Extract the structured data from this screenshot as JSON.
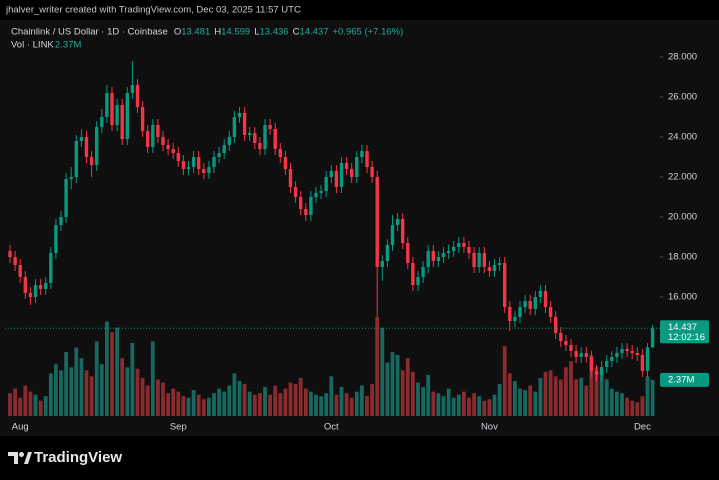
{
  "header": {
    "watermark": "jhalver_writer created with TradingView.com, Dec 03, 2025 11:57 UTC",
    "symbol": "Chainlink / US Dollar · 1D · Coinbase",
    "ohlc": [
      {
        "key": "O",
        "value": "13.481"
      },
      {
        "key": "H",
        "value": "14.599"
      },
      {
        "key": "L",
        "value": "13.436"
      },
      {
        "key": "C",
        "value": "14.437"
      }
    ],
    "change": "+0.965 (+7.16%)",
    "volume_title": "Vol · LINK",
    "volume_value": "2.37M",
    "logo": "TradingView"
  },
  "chart_data": {
    "type": "candlestick",
    "categories": [
      null,
      null,
      "Aug",
      null,
      null,
      null,
      null,
      null,
      null,
      null,
      null,
      null,
      null,
      null,
      null,
      null,
      null,
      null,
      null,
      null,
      null,
      null,
      null,
      null,
      null,
      null,
      null,
      null,
      null,
      null,
      null,
      null,
      null,
      "Sep",
      null,
      null,
      null,
      null,
      null,
      null,
      null,
      null,
      null,
      null,
      null,
      null,
      null,
      null,
      null,
      null,
      null,
      null,
      null,
      null,
      null,
      null,
      null,
      null,
      null,
      null,
      null,
      null,
      null,
      "Oct",
      null,
      null,
      null,
      null,
      null,
      null,
      null,
      null,
      null,
      null,
      null,
      null,
      null,
      null,
      null,
      null,
      null,
      null,
      null,
      null,
      null,
      null,
      null,
      null,
      null,
      null,
      null,
      null,
      null,
      null,
      "Nov",
      null,
      null,
      null,
      null,
      null,
      null,
      null,
      null,
      null,
      null,
      null,
      null,
      null,
      null,
      null,
      null,
      null,
      null,
      null,
      null,
      null,
      null,
      null,
      null,
      null,
      null,
      null,
      null,
      null,
      "Dec",
      null,
      null
    ],
    "open": [
      18.3,
      18.0,
      17.6,
      17.0,
      16.2,
      16.0,
      16.6,
      16.4,
      16.7,
      18.2,
      19.6,
      20.0,
      21.9,
      22.0,
      23.8,
      24.0,
      23.0,
      22.6,
      24.5,
      25.0,
      26.2,
      24.6,
      25.6,
      23.9,
      26.2,
      26.6,
      25.5,
      24.3,
      23.5,
      24.6,
      24.0,
      23.6,
      23.4,
      23.2,
      22.8,
      22.4,
      22.5,
      23.0,
      22.4,
      22.2,
      22.5,
      23.0,
      23.2,
      23.6,
      24.0,
      25.0,
      25.2,
      24.1,
      24.2,
      23.7,
      23.4,
      24.6,
      24.4,
      23.4,
      23.0,
      22.4,
      21.5,
      21.0,
      20.4,
      20.1,
      21.0,
      21.2,
      21.3,
      22.0,
      22.3,
      21.5,
      22.7,
      22.4,
      22.0,
      23.0,
      23.3,
      22.5,
      22.0,
      17.5,
      17.8,
      18.6,
      19.6,
      19.9,
      18.7,
      17.7,
      16.6,
      17.0,
      17.5,
      18.3,
      17.8,
      18.0,
      18.2,
      18.3,
      18.5,
      18.7,
      18.5,
      18.2,
      17.5,
      18.2,
      17.5,
      17.3,
      17.6,
      17.7,
      15.5,
      14.8,
      15.0,
      15.5,
      15.8,
      15.4,
      16.0,
      16.3,
      15.5,
      15.0,
      14.2,
      13.8,
      13.6,
      13.3,
      13.0,
      13.2,
      13.0,
      12.3,
      12.1,
      12.5,
      12.8,
      13.0,
      13.2,
      13.4,
      13.3,
      13.2,
      13.1,
      12.3,
      13.481
    ],
    "high": [
      18.6,
      18.3,
      17.9,
      17.3,
      16.5,
      16.9,
      16.9,
      17.0,
      18.5,
      19.9,
      20.3,
      22.2,
      22.5,
      24.1,
      24.4,
      24.3,
      23.3,
      24.8,
      25.4,
      26.6,
      26.5,
      25.9,
      25.9,
      26.5,
      27.8,
      26.9,
      25.8,
      24.6,
      24.9,
      24.9,
      24.3,
      23.9,
      23.7,
      23.5,
      23.1,
      22.8,
      23.3,
      23.3,
      22.7,
      22.8,
      23.3,
      23.5,
      23.9,
      24.3,
      25.3,
      25.5,
      25.5,
      24.5,
      24.5,
      24.0,
      24.9,
      24.9,
      24.7,
      23.7,
      23.3,
      22.7,
      21.8,
      21.3,
      20.7,
      21.3,
      21.5,
      21.6,
      22.3,
      22.6,
      22.6,
      23.0,
      23.0,
      22.7,
      23.3,
      23.6,
      23.6,
      22.8,
      22.3,
      18.1,
      18.9,
      20.1,
      20.2,
      20.2,
      19.0,
      18.0,
      17.3,
      17.8,
      18.6,
      18.6,
      18.3,
      18.5,
      18.6,
      18.8,
      19.0,
      19.0,
      18.8,
      18.5,
      18.5,
      18.5,
      17.8,
      17.9,
      18.0,
      18.0,
      15.8,
      15.3,
      15.8,
      16.1,
      16.1,
      16.3,
      16.6,
      16.6,
      15.8,
      15.3,
      14.5,
      14.1,
      13.9,
      13.6,
      13.5,
      13.5,
      13.3,
      12.6,
      12.8,
      13.1,
      13.3,
      13.5,
      13.7,
      13.7,
      13.6,
      13.5,
      13.4,
      13.7,
      14.599
    ],
    "low": [
      17.7,
      17.3,
      16.7,
      15.9,
      15.6,
      15.7,
      16.1,
      16.1,
      16.4,
      17.9,
      19.3,
      19.7,
      21.4,
      21.7,
      23.5,
      22.7,
      22.0,
      22.3,
      24.2,
      24.7,
      24.3,
      24.3,
      23.6,
      23.6,
      25.9,
      25.2,
      24.0,
      23.2,
      23.2,
      23.7,
      23.3,
      23.1,
      22.9,
      22.5,
      22.1,
      22.1,
      22.2,
      22.1,
      21.9,
      21.9,
      22.2,
      22.7,
      22.9,
      23.3,
      23.7,
      24.7,
      23.8,
      23.8,
      23.4,
      23.1,
      23.1,
      24.1,
      23.1,
      22.7,
      22.1,
      21.2,
      20.7,
      20.1,
      19.8,
      19.8,
      20.7,
      20.9,
      21.0,
      21.7,
      21.2,
      21.2,
      22.1,
      21.7,
      21.7,
      22.7,
      22.2,
      21.7,
      15.0,
      16.8,
      17.5,
      18.3,
      19.3,
      18.4,
      17.4,
      16.3,
      16.3,
      16.7,
      17.2,
      17.5,
      17.5,
      17.7,
      17.9,
      18.0,
      18.2,
      18.2,
      17.9,
      17.2,
      17.2,
      17.2,
      17.0,
      17.0,
      17.3,
      15.2,
      14.3,
      14.5,
      14.7,
      15.2,
      15.1,
      15.1,
      15.7,
      15.2,
      14.7,
      13.9,
      13.5,
      13.3,
      13.0,
      12.7,
      12.7,
      12.7,
      12.0,
      11.8,
      11.8,
      12.2,
      12.5,
      12.7,
      12.9,
      13.0,
      12.9,
      12.8,
      12.0,
      12.0,
      13.436
    ],
    "close": [
      18.0,
      17.6,
      17.0,
      16.2,
      16.0,
      16.6,
      16.4,
      16.7,
      18.2,
      19.6,
      20.0,
      21.9,
      22.0,
      23.8,
      24.0,
      23.0,
      22.6,
      24.5,
      25.0,
      26.2,
      24.6,
      25.6,
      23.9,
      26.2,
      26.6,
      25.5,
      24.3,
      23.5,
      24.6,
      24.0,
      23.6,
      23.4,
      23.2,
      22.8,
      22.4,
      22.5,
      23.0,
      22.4,
      22.2,
      22.5,
      23.0,
      23.2,
      23.6,
      24.0,
      25.0,
      25.2,
      24.1,
      24.2,
      23.7,
      23.4,
      24.6,
      24.4,
      23.4,
      23.0,
      22.4,
      21.5,
      21.0,
      20.4,
      20.1,
      21.0,
      21.2,
      21.3,
      22.0,
      22.3,
      21.5,
      22.7,
      22.4,
      22.0,
      23.0,
      23.3,
      22.5,
      22.0,
      17.5,
      17.8,
      18.6,
      19.6,
      19.9,
      18.7,
      17.7,
      16.6,
      17.0,
      17.5,
      18.3,
      17.8,
      18.0,
      18.2,
      18.3,
      18.5,
      18.7,
      18.5,
      18.2,
      17.5,
      18.2,
      17.5,
      17.3,
      17.6,
      17.7,
      15.5,
      14.8,
      15.0,
      15.5,
      15.8,
      15.4,
      16.0,
      16.3,
      15.5,
      15.0,
      14.2,
      13.8,
      13.6,
      13.3,
      13.0,
      13.2,
      13.0,
      12.3,
      12.1,
      12.5,
      12.8,
      13.0,
      13.2,
      13.4,
      13.3,
      13.2,
      13.1,
      12.3,
      13.481,
      14.437
    ],
    "volume": [
      1.5,
      1.8,
      1.2,
      2.0,
      1.6,
      1.4,
      1.0,
      1.3,
      2.8,
      3.4,
      3.0,
      4.2,
      3.2,
      4.5,
      3.8,
      3.0,
      2.6,
      4.9,
      3.4,
      6.2,
      5.5,
      5.8,
      3.8,
      3.2,
      4.8,
      3.1,
      2.5,
      2.0,
      4.9,
      2.4,
      2.2,
      1.5,
      1.8,
      1.6,
      1.3,
      1.2,
      1.7,
      1.4,
      1.1,
      1.2,
      1.5,
      1.8,
      1.6,
      2.0,
      2.8,
      2.3,
      2.1,
      1.6,
      1.4,
      1.5,
      1.9,
      1.4,
      2.0,
      1.5,
      1.8,
      2.2,
      2.1,
      2.5,
      1.8,
      1.6,
      1.4,
      1.3,
      1.5,
      2.6,
      1.4,
      1.9,
      1.5,
      1.2,
      1.6,
      2.0,
      1.3,
      2.1,
      6.5,
      5.8,
      3.5,
      4.2,
      4.0,
      3.0,
      3.8,
      2.9,
      2.2,
      1.9,
      2.7,
      1.6,
      1.5,
      1.3,
      1.8,
      1.2,
      1.4,
      1.6,
      1.2,
      1.5,
      1.3,
      1.0,
      1.1,
      1.4,
      2.1,
      4.6,
      2.8,
      2.3,
      1.8,
      1.7,
      2.0,
      1.6,
      2.5,
      2.9,
      3.0,
      2.6,
      2.4,
      3.2,
      3.6,
      2.4,
      2.5,
      2.0,
      4.0,
      3.2,
      2.9,
      2.4,
      1.8,
      1.6,
      1.5,
      1.2,
      1.0,
      0.9,
      1.3,
      2.6,
      2.37
    ],
    "volume_label": "2.37M",
    "last_price_label": "14.437",
    "countdown": "12:02:16",
    "ylim": [
      10.05,
      29.85
    ],
    "yticks": [
      {
        "value": 16,
        "label": "16.000"
      },
      {
        "value": 18,
        "label": "18.000"
      },
      {
        "value": 20,
        "label": "20.000"
      },
      {
        "value": 22,
        "label": "22.000"
      },
      {
        "value": 24,
        "label": "24.000"
      },
      {
        "value": 26,
        "label": "26.000"
      },
      {
        "value": 28,
        "label": "28.000"
      }
    ],
    "y2lim": [
      0,
      26
    ],
    "up_color": "#089981",
    "down_color": "#f23645",
    "volume_up_color": "#17685f",
    "volume_down_color": "#8a2b2f",
    "grid": false
  }
}
